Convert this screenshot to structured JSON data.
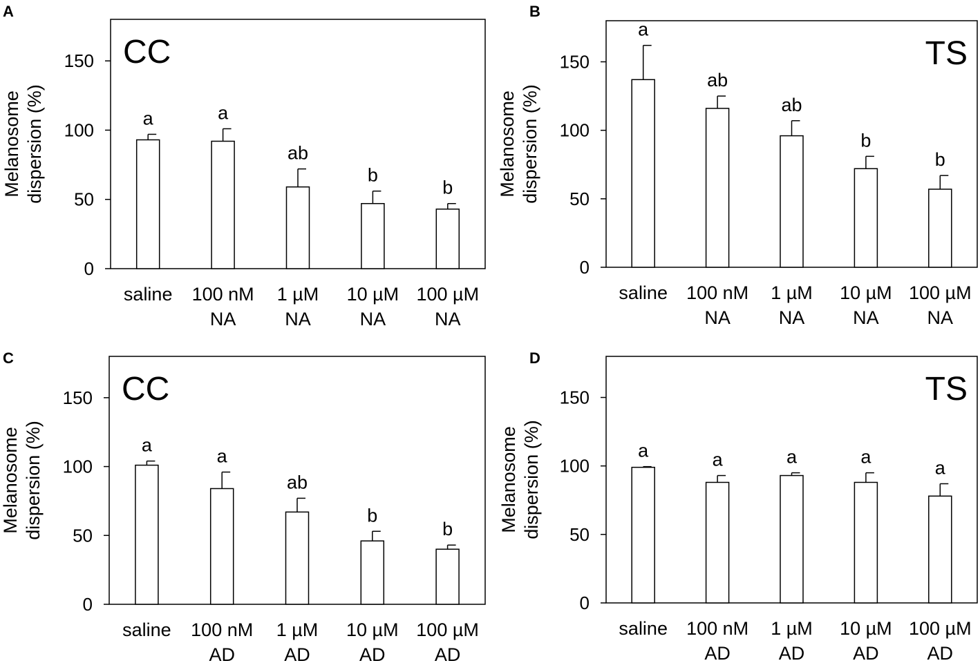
{
  "chart_data": [
    {
      "panel": "A",
      "type": "bar",
      "title": "CC",
      "title_position": "top-left",
      "ylabel_lines": [
        "Melanosome",
        "dispersion (%)"
      ],
      "ylim": [
        0,
        180
      ],
      "yticks": [
        0,
        50,
        100,
        150
      ],
      "categories": [
        [
          "saline"
        ],
        [
          "100 nM",
          "NA"
        ],
        [
          "1 µM",
          "NA"
        ],
        [
          "10 µM",
          "NA"
        ],
        [
          "100 µM",
          "NA"
        ]
      ],
      "values": [
        93,
        92,
        59,
        47,
        43
      ],
      "errors": [
        4,
        9,
        13,
        9,
        4
      ],
      "significance": [
        "a",
        "a",
        "ab",
        "b",
        "b"
      ]
    },
    {
      "panel": "B",
      "type": "bar",
      "title": "TS",
      "title_position": "top-right",
      "ylabel_lines": [
        "Melanosome",
        "dispersion (%)"
      ],
      "ylim": [
        0,
        180
      ],
      "yticks": [
        0,
        50,
        100,
        150
      ],
      "categories": [
        [
          "saline"
        ],
        [
          "100 nM",
          "NA"
        ],
        [
          "1 µM",
          "NA"
        ],
        [
          "10 µM",
          "NA"
        ],
        [
          "100 µM",
          "NA"
        ]
      ],
      "values": [
        137,
        116,
        96,
        72,
        57
      ],
      "errors": [
        25,
        9,
        11,
        9,
        10
      ],
      "significance": [
        "a",
        "ab",
        "ab",
        "b",
        "b"
      ]
    },
    {
      "panel": "C",
      "type": "bar",
      "title": "CC",
      "title_position": "top-left",
      "ylabel_lines": [
        "Melanosome",
        "dispersion (%)"
      ],
      "ylim": [
        0,
        180
      ],
      "yticks": [
        0,
        50,
        100,
        150
      ],
      "categories": [
        [
          "saline"
        ],
        [
          "100 nM",
          "AD"
        ],
        [
          "1 µM",
          "AD"
        ],
        [
          "10 µM",
          "AD"
        ],
        [
          "100 µM",
          "AD"
        ]
      ],
      "values": [
        101,
        84,
        67,
        46,
        40
      ],
      "errors": [
        3,
        12,
        10,
        7,
        3
      ],
      "significance": [
        "a",
        "a",
        "ab",
        "b",
        "b"
      ]
    },
    {
      "panel": "D",
      "type": "bar",
      "title": "TS",
      "title_position": "top-right",
      "ylabel_lines": [
        "Melanosome",
        "dispersion (%)"
      ],
      "ylim": [
        0,
        180
      ],
      "yticks": [
        0,
        50,
        100,
        150
      ],
      "categories": [
        [
          "saline"
        ],
        [
          "100 nM",
          "AD"
        ],
        [
          "1 µM",
          "AD"
        ],
        [
          "10 µM",
          "AD"
        ],
        [
          "100 µM",
          "AD"
        ]
      ],
      "values": [
        99,
        88,
        93,
        88,
        78
      ],
      "errors": [
        0.5,
        5,
        2,
        7,
        9
      ],
      "significance": [
        "a",
        "a",
        "a",
        "a",
        "a"
      ]
    }
  ]
}
